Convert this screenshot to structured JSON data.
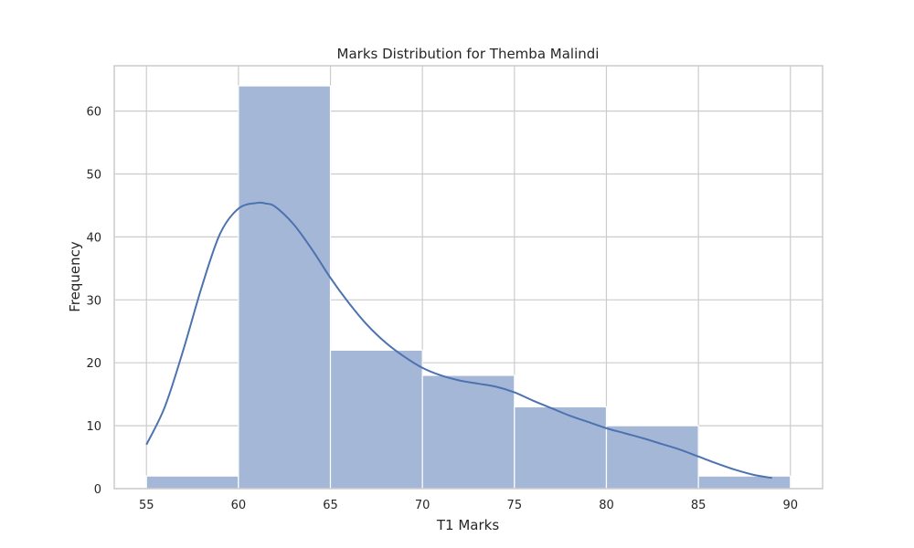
{
  "chart_data": {
    "type": "bar",
    "subtype": "histogram-with-kde",
    "title": "Marks Distribution for Themba Malindi",
    "xlabel": "T1 Marks",
    "ylabel": "Frequency",
    "xlim": [
      53.25,
      91.75
    ],
    "ylim": [
      0,
      67.2
    ],
    "xticks": [
      55,
      60,
      65,
      70,
      75,
      80,
      85,
      90
    ],
    "yticks": [
      0,
      10,
      20,
      30,
      40,
      50,
      60
    ],
    "grid": true,
    "bins": [
      {
        "start": 55,
        "end": 60,
        "count": 2
      },
      {
        "start": 60,
        "end": 65,
        "count": 64
      },
      {
        "start": 65,
        "end": 70,
        "count": 22
      },
      {
        "start": 70,
        "end": 75,
        "count": 18
      },
      {
        "start": 75,
        "end": 80,
        "count": 13
      },
      {
        "start": 80,
        "end": 85,
        "count": 10
      },
      {
        "start": 85,
        "end": 90,
        "count": 2
      }
    ],
    "kde": {
      "x": [
        55,
        56,
        57,
        58,
        59,
        60,
        61,
        61.5,
        62,
        63,
        64,
        65,
        66,
        67,
        68,
        69,
        70,
        71,
        72,
        73,
        74,
        75,
        76,
        77,
        78,
        79,
        80,
        81,
        82,
        83,
        84,
        85,
        86,
        87,
        88,
        89
      ],
      "y": [
        7,
        13,
        22,
        32,
        40.5,
        44.5,
        45.4,
        45.3,
        44.8,
        42,
        38,
        33.5,
        29.5,
        26,
        23.2,
        21,
        19.2,
        18,
        17.2,
        16.7,
        16.2,
        15.3,
        14,
        12.8,
        11.6,
        10.6,
        9.6,
        8.8,
        8,
        7.1,
        6.2,
        5.1,
        4,
        3,
        2.2,
        1.7
      ]
    },
    "colors": {
      "bar_fill": "#a5b7d7",
      "bar_edge": "#ffffff",
      "kde_line": "#4c72b0",
      "grid": "#cccccc",
      "frame": "#cccccc",
      "text": "#262626"
    }
  }
}
